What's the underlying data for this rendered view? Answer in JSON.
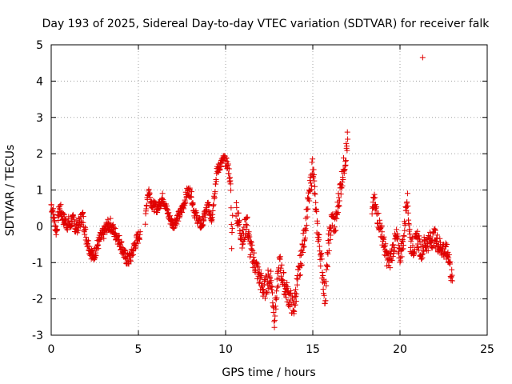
{
  "chart_data": {
    "type": "scatter",
    "title": "Day 193 of 2025, Sidereal Day-to-day VTEC variation (SDTVAR) for receiver falk",
    "xlabel": "GPS time / hours",
    "ylabel": "SDTVAR / TECUs",
    "xlim": [
      0,
      25
    ],
    "ylim": [
      -3,
      5
    ],
    "x_ticks": [
      "0",
      "5",
      "10",
      "15",
      "20",
      "25"
    ],
    "y_ticks": [
      "-3",
      "-2",
      "-1",
      "0",
      "1",
      "2",
      "3",
      "4",
      "5"
    ],
    "grid": true,
    "marker": "plus",
    "color": "#e00000",
    "series": [
      {
        "name": "SDTVAR",
        "segments": [
          {
            "points": [
              [
                0.0,
                0.6
              ],
              [
                0.1,
                0.4
              ],
              [
                0.2,
                0.1
              ],
              [
                0.3,
                -0.15
              ],
              [
                0.4,
                0.3
              ],
              [
                0.5,
                0.5
              ],
              [
                0.6,
                0.35
              ],
              [
                0.7,
                0.2
              ],
              [
                0.8,
                0.15
              ],
              [
                0.9,
                0.05
              ],
              [
                1.0,
                0.1
              ],
              [
                1.1,
                0.0
              ],
              [
                1.2,
                0.2
              ],
              [
                1.3,
                0.1
              ],
              [
                1.4,
                -0.05
              ],
              [
                1.6,
                0.05
              ],
              [
                1.8,
                0.3
              ],
              [
                2.0,
                -0.3
              ],
              [
                2.2,
                -0.6
              ],
              [
                2.4,
                -0.85
              ],
              [
                2.6,
                -0.6
              ],
              [
                2.8,
                -0.35
              ],
              [
                3.0,
                -0.2
              ],
              [
                3.2,
                0.0
              ],
              [
                3.4,
                0.05
              ],
              [
                3.6,
                -0.15
              ],
              [
                3.8,
                -0.3
              ],
              [
                4.0,
                -0.5
              ],
              [
                4.2,
                -0.8
              ],
              [
                4.4,
                -0.95
              ],
              [
                4.6,
                -0.8
              ],
              [
                4.8,
                -0.5
              ],
              [
                5.0,
                -0.3
              ],
              [
                5.1,
                -0.15
              ]
            ],
            "jitter": 0.18
          },
          {
            "points": [
              [
                5.4,
                0.1
              ],
              [
                5.5,
                0.8
              ],
              [
                5.6,
                1.0
              ],
              [
                5.7,
                0.7
              ],
              [
                5.9,
                0.55
              ],
              [
                6.1,
                0.5
              ],
              [
                6.4,
                0.8
              ],
              [
                6.6,
                0.5
              ],
              [
                6.8,
                0.2
              ],
              [
                7.0,
                0.05
              ],
              [
                7.2,
                0.2
              ],
              [
                7.4,
                0.35
              ],
              [
                7.6,
                0.6
              ],
              [
                7.8,
                0.95
              ],
              [
                8.0,
                0.95
              ],
              [
                8.2,
                0.4
              ],
              [
                8.4,
                0.2
              ],
              [
                8.6,
                0.0
              ],
              [
                8.8,
                0.3
              ],
              [
                9.0,
                0.6
              ],
              [
                9.2,
                0.2
              ],
              [
                9.5,
                1.5
              ],
              [
                9.7,
                1.7
              ],
              [
                9.9,
                1.85
              ],
              [
                10.1,
                1.7
              ],
              [
                10.2,
                1.5
              ],
              [
                10.3,
                1.0
              ],
              [
                10.35,
                -0.5
              ],
              [
                10.4,
                0.3
              ]
            ],
            "jitter": 0.14
          },
          {
            "points": [
              [
                10.6,
                0.5
              ],
              [
                10.8,
                0.0
              ],
              [
                11.0,
                -0.4
              ],
              [
                11.2,
                0.2
              ],
              [
                11.4,
                -0.6
              ],
              [
                11.6,
                -0.9
              ],
              [
                11.8,
                -1.2
              ],
              [
                12.0,
                -1.5
              ],
              [
                12.2,
                -1.8
              ],
              [
                12.4,
                -1.5
              ],
              [
                12.6,
                -1.4
              ],
              [
                12.8,
                -2.5
              ],
              [
                13.1,
                -1.0
              ],
              [
                13.3,
                -1.5
              ],
              [
                13.5,
                -1.8
              ],
              [
                13.7,
                -2.0
              ],
              [
                13.9,
                -2.3
              ],
              [
                14.1,
                -1.6
              ],
              [
                14.3,
                -1.0
              ],
              [
                14.5,
                -0.3
              ],
              [
                14.7,
                0.5
              ],
              [
                14.9,
                1.2
              ],
              [
                15.0,
                1.8
              ],
              [
                15.2,
                0.2
              ],
              [
                15.4,
                -0.6
              ],
              [
                15.5,
                -1.0
              ],
              [
                15.6,
                -1.5
              ],
              [
                15.7,
                -2.0
              ],
              [
                15.9,
                -0.5
              ],
              [
                16.1,
                0.2
              ],
              [
                16.3,
                0.0
              ],
              [
                16.5,
                0.8
              ],
              [
                16.7,
                1.4
              ],
              [
                16.9,
                2.0
              ],
              [
                17.0,
                2.4
              ]
            ],
            "jitter": 0.3
          },
          {
            "points": [
              [
                18.4,
                0.3
              ],
              [
                18.5,
                0.7
              ],
              [
                19.0,
                -0.3
              ],
              [
                19.2,
                -0.8
              ],
              [
                19.4,
                -1.0
              ],
              [
                19.6,
                -0.6
              ],
              [
                19.8,
                -0.3
              ],
              [
                20.0,
                -0.8
              ],
              [
                20.2,
                -0.4
              ],
              [
                20.4,
                0.9
              ],
              [
                20.6,
                -0.5
              ],
              [
                20.8,
                -0.6
              ],
              [
                21.0,
                -0.3
              ],
              [
                21.2,
                -0.7
              ],
              [
                21.4,
                -0.5
              ],
              [
                22.0,
                -0.3
              ],
              [
                22.2,
                -0.5
              ],
              [
                22.8,
                -0.8
              ],
              [
                22.9,
                -1.2
              ],
              [
                23.0,
                -1.5
              ]
            ],
            "jitter": 0.25
          },
          {
            "points": [
              [
                21.3,
                4.65
              ]
            ],
            "jitter": 0.0
          }
        ]
      }
    ]
  }
}
